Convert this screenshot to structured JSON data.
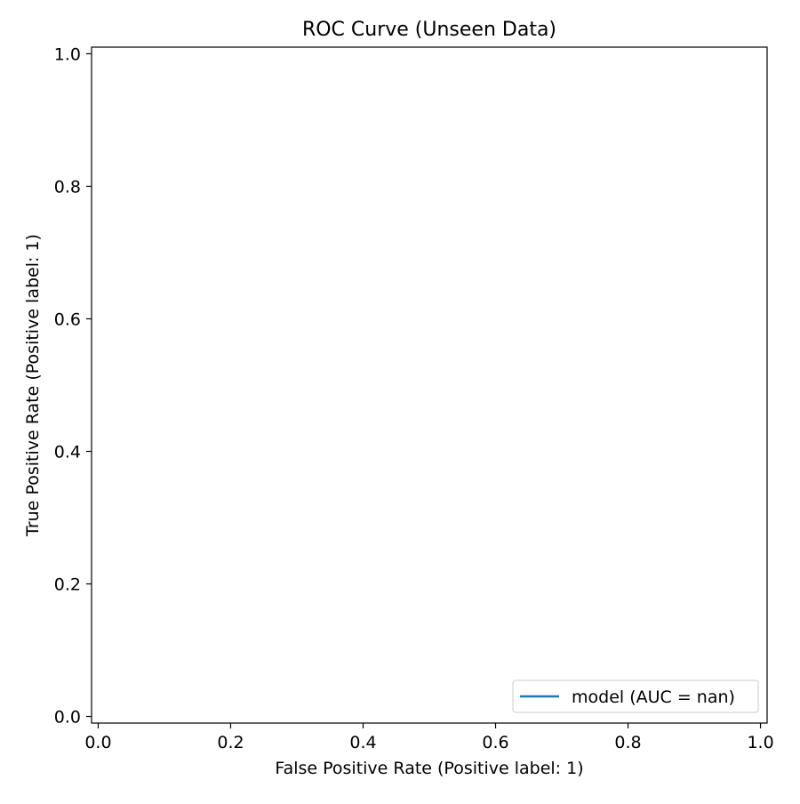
{
  "chart_data": {
    "type": "line",
    "title": "ROC Curve (Unseen Data)",
    "xlabel": "False Positive Rate (Positive label: 1)",
    "ylabel": "True Positive Rate (Positive label: 1)",
    "xlim": [
      -0.01,
      1.01
    ],
    "ylim": [
      -0.01,
      1.01
    ],
    "xticks": [
      0.0,
      0.2,
      0.4,
      0.6,
      0.8,
      1.0
    ],
    "xtick_labels": [
      "0.0",
      "0.2",
      "0.4",
      "0.6",
      "0.8",
      "1.0"
    ],
    "yticks": [
      0.0,
      0.2,
      0.4,
      0.6,
      0.8,
      1.0
    ],
    "ytick_labels": [
      "0.0",
      "0.2",
      "0.4",
      "0.6",
      "0.8",
      "1.0"
    ],
    "grid": false,
    "legend_position": "lower-right",
    "series": [
      {
        "name": "model (AUC = nan)",
        "color": "#1f77b4",
        "x": [],
        "y": []
      }
    ]
  }
}
